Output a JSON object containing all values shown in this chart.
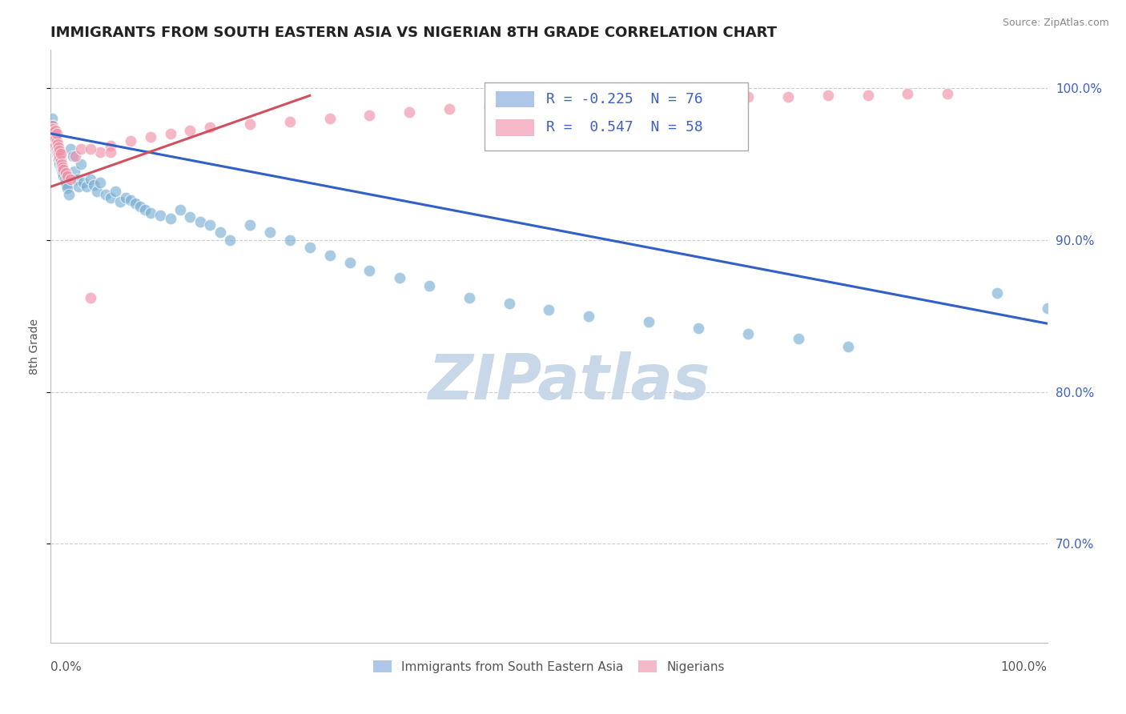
{
  "title": "IMMIGRANTS FROM SOUTH EASTERN ASIA VS NIGERIAN 8TH GRADE CORRELATION CHART",
  "source": "Source: ZipAtlas.com",
  "ylabel": "8th Grade",
  "ylabel_right_ticks": [
    "100.0%",
    "90.0%",
    "80.0%",
    "70.0%"
  ],
  "ylabel_right_vals": [
    1.0,
    0.9,
    0.8,
    0.7
  ],
  "x_min": 0.0,
  "x_max": 1.0,
  "y_min": 0.635,
  "y_max": 1.025,
  "watermark": "ZIPatlas",
  "blue_scatter_x": [
    0.001,
    0.002,
    0.003,
    0.003,
    0.004,
    0.004,
    0.005,
    0.005,
    0.006,
    0.006,
    0.007,
    0.007,
    0.008,
    0.008,
    0.009,
    0.009,
    0.01,
    0.01,
    0.011,
    0.012,
    0.013,
    0.014,
    0.015,
    0.016,
    0.017,
    0.018,
    0.02,
    0.022,
    0.024,
    0.026,
    0.028,
    0.03,
    0.033,
    0.036,
    0.04,
    0.043,
    0.046,
    0.05,
    0.055,
    0.06,
    0.065,
    0.07,
    0.075,
    0.08,
    0.085,
    0.09,
    0.095,
    0.1,
    0.11,
    0.12,
    0.13,
    0.14,
    0.15,
    0.16,
    0.17,
    0.18,
    0.2,
    0.22,
    0.24,
    0.26,
    0.28,
    0.3,
    0.32,
    0.35,
    0.38,
    0.42,
    0.46,
    0.5,
    0.54,
    0.6,
    0.65,
    0.7,
    0.75,
    0.8,
    0.95,
    1.0
  ],
  "blue_scatter_y": [
    0.98,
    0.975,
    0.97,
    0.965,
    0.968,
    0.972,
    0.96,
    0.966,
    0.958,
    0.963,
    0.955,
    0.961,
    0.953,
    0.958,
    0.95,
    0.956,
    0.948,
    0.954,
    0.946,
    0.944,
    0.942,
    0.94,
    0.938,
    0.936,
    0.934,
    0.93,
    0.96,
    0.955,
    0.945,
    0.94,
    0.935,
    0.95,
    0.938,
    0.935,
    0.94,
    0.936,
    0.932,
    0.938,
    0.93,
    0.928,
    0.932,
    0.925,
    0.928,
    0.926,
    0.924,
    0.922,
    0.92,
    0.918,
    0.916,
    0.914,
    0.92,
    0.915,
    0.912,
    0.91,
    0.905,
    0.9,
    0.91,
    0.905,
    0.9,
    0.895,
    0.89,
    0.885,
    0.88,
    0.875,
    0.87,
    0.862,
    0.858,
    0.854,
    0.85,
    0.846,
    0.842,
    0.838,
    0.835,
    0.83,
    0.865,
    0.855
  ],
  "pink_scatter_x": [
    0.001,
    0.001,
    0.002,
    0.002,
    0.003,
    0.003,
    0.004,
    0.004,
    0.005,
    0.005,
    0.005,
    0.006,
    0.006,
    0.006,
    0.007,
    0.007,
    0.008,
    0.008,
    0.009,
    0.009,
    0.01,
    0.01,
    0.011,
    0.012,
    0.013,
    0.015,
    0.017,
    0.02,
    0.025,
    0.03,
    0.04,
    0.05,
    0.06,
    0.08,
    0.1,
    0.12,
    0.14,
    0.16,
    0.2,
    0.24,
    0.28,
    0.32,
    0.36,
    0.4,
    0.44,
    0.48,
    0.52,
    0.56,
    0.6,
    0.65,
    0.7,
    0.74,
    0.78,
    0.82,
    0.86,
    0.9,
    0.04,
    0.06
  ],
  "pink_scatter_y": [
    0.97,
    0.975,
    0.968,
    0.973,
    0.966,
    0.971,
    0.964,
    0.969,
    0.962,
    0.967,
    0.972,
    0.96,
    0.965,
    0.97,
    0.958,
    0.963,
    0.956,
    0.961,
    0.954,
    0.959,
    0.952,
    0.957,
    0.95,
    0.948,
    0.946,
    0.944,
    0.942,
    0.94,
    0.955,
    0.96,
    0.862,
    0.958,
    0.962,
    0.965,
    0.968,
    0.97,
    0.972,
    0.974,
    0.976,
    0.978,
    0.98,
    0.982,
    0.984,
    0.986,
    0.988,
    0.989,
    0.99,
    0.991,
    0.992,
    0.993,
    0.994,
    0.994,
    0.995,
    0.995,
    0.996,
    0.996,
    0.96,
    0.958
  ],
  "blue_line_x": [
    0.0,
    1.0
  ],
  "blue_line_y": [
    0.97,
    0.845
  ],
  "pink_line_x": [
    0.0,
    0.26
  ],
  "pink_line_y": [
    0.935,
    0.995
  ],
  "title_color": "#222222",
  "title_fontsize": 13,
  "axis_color": "#555555",
  "grid_color": "#cccccc",
  "blue_color": "#7aafd4",
  "pink_color": "#f090a8",
  "blue_line_color": "#3060c8",
  "pink_line_color": "#d05060",
  "source_color": "#888888",
  "watermark_color": "#c8d8e8",
  "legend_box_blue": "#aec6e8",
  "legend_box_pink": "#f4b8c8",
  "legend_text_color": "#4060c0",
  "legend_fontsize": 13
}
